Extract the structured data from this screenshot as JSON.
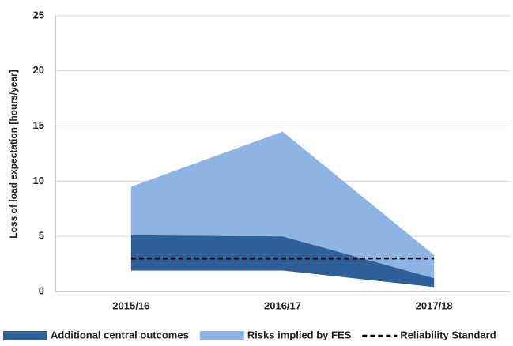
{
  "chart_data": {
    "type": "range-area",
    "y_label": "Loss of load expectation [hours/year]",
    "categories": [
      "2015/16",
      "2016/17",
      "2017/18"
    ],
    "series": [
      {
        "name": "Risks implied by FES",
        "color": "#8eb4e3",
        "low": [
          5.1,
          5.0,
          1.2
        ],
        "high": [
          9.5,
          14.5,
          3.3
        ]
      },
      {
        "name": "Additional central outcomes",
        "color": "#2f5f97",
        "low": [
          1.9,
          1.9,
          0.4
        ],
        "high": [
          5.1,
          5.0,
          1.2
        ]
      }
    ],
    "reference": {
      "name": "Reliability Standard",
      "color": "#000000",
      "values": [
        3,
        3,
        3
      ]
    },
    "legend_order": [
      1,
      0
    ],
    "ylim": [
      0,
      25
    ],
    "yticks": [
      0,
      5,
      10,
      15,
      20,
      25
    ],
    "grid": true,
    "legend": "bottom"
  }
}
